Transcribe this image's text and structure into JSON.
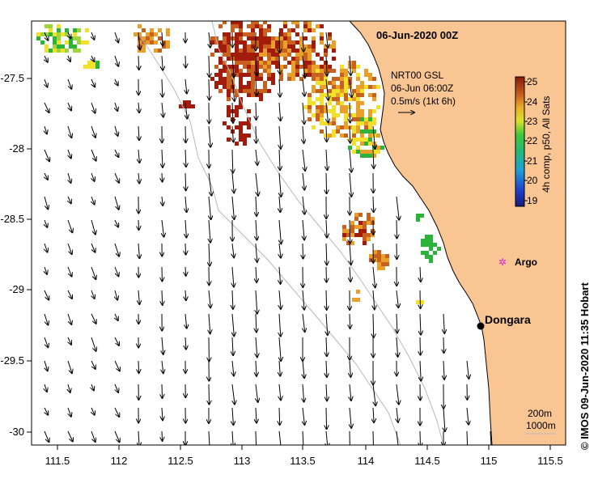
{
  "map_title": "06-Jun-2020 00Z",
  "legend": {
    "line1": "NRT00 GSL",
    "line2": "06-Jun 06:00Z",
    "line3": "0.5m/s (1kt 6h)"
  },
  "colorbar": {
    "label": "4h comp, p50, All Sats",
    "ticks": [
      "25",
      "24",
      "23",
      "22",
      "21",
      "20",
      "19"
    ]
  },
  "places": {
    "argo": "Argo",
    "dongara": "Dongara"
  },
  "isobaths": {
    "shallow": "200m",
    "deep": "1000m"
  },
  "axes": {
    "x_ticks": [
      "111.5",
      "112",
      "112.5",
      "113",
      "113.5",
      "114",
      "114.5",
      "115",
      "115.5"
    ],
    "y_ticks": [
      "-27.5",
      "-28",
      "-28.5",
      "-29",
      "-29.5",
      "-30"
    ]
  },
  "credit": "©  IMOS 09-Jun-2020 11:35 Hobart",
  "colors": {
    "land": "#f9c593",
    "sst_hot": "#a31b0b",
    "sst_warm": "#c8611d",
    "sst_mid": "#e8a02a",
    "sst_yellow": "#f2e12a",
    "sst_green": "#2cb43a",
    "argo": "#e020e0"
  }
}
